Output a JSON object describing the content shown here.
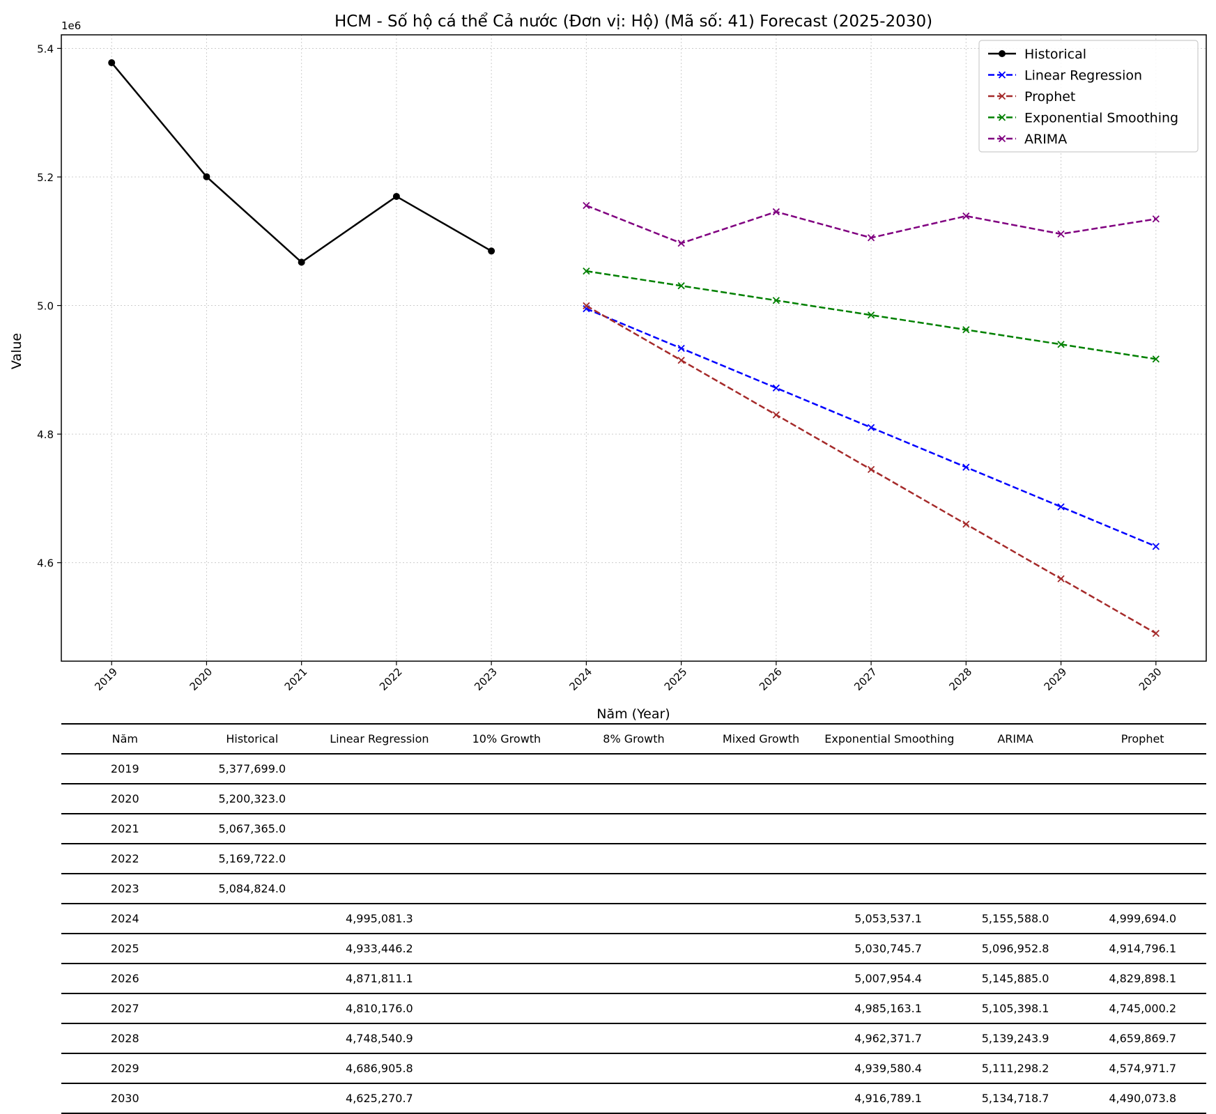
{
  "chart_data": {
    "type": "line",
    "title": "HCM - Số hộ cá thể Cả nước (Đơn vị: Hộ) (Mã số: 41) Forecast (2025-2030)",
    "xlabel": "Năm (Year)",
    "ylabel": "Value",
    "y_offset_label": "1e6",
    "x_ticks": [
      "2019",
      "2020",
      "2021",
      "2022",
      "2023",
      "2024",
      "2025",
      "2026",
      "2027",
      "2028",
      "2029",
      "2030"
    ],
    "y_ticks": [
      "4.6",
      "4.8",
      "5.0",
      "5.2",
      "5.4"
    ],
    "xlim": [
      2018.47,
      2030.53
    ],
    "ylim": [
      4446830,
      5421080
    ],
    "grid": true,
    "legend_position": "top-right",
    "series": [
      {
        "name": "Historical",
        "color": "#000000",
        "style": "solid",
        "marker": "circle",
        "x": [
          2019,
          2020,
          2021,
          2022,
          2023
        ],
        "values": [
          5377699.0,
          5200323.0,
          5067365.0,
          5169722.0,
          5084824.0
        ]
      },
      {
        "name": "Linear Regression",
        "color": "#0000ff",
        "style": "dashed",
        "marker": "x",
        "x": [
          2024,
          2025,
          2026,
          2027,
          2028,
          2029,
          2030
        ],
        "values": [
          4995081.3,
          4933446.2,
          4871811.1,
          4810176.0,
          4748540.9,
          4686905.8,
          4625270.7
        ]
      },
      {
        "name": "Prophet",
        "color": "#a52a2a",
        "style": "dashed",
        "marker": "x",
        "x": [
          2024,
          2025,
          2026,
          2027,
          2028,
          2029,
          2030
        ],
        "values": [
          4999694.0,
          4914796.1,
          4829898.1,
          4745000.2,
          4659869.7,
          4574971.7,
          4490073.8
        ]
      },
      {
        "name": "Exponential Smoothing",
        "color": "#008000",
        "style": "dashed",
        "marker": "x",
        "x": [
          2024,
          2025,
          2026,
          2027,
          2028,
          2029,
          2030
        ],
        "values": [
          5053537.1,
          5030745.7,
          5007954.4,
          4985163.1,
          4962371.7,
          4939580.4,
          4916789.1
        ]
      },
      {
        "name": "ARIMA",
        "color": "#800080",
        "style": "dashed",
        "marker": "x",
        "x": [
          2024,
          2025,
          2026,
          2027,
          2028,
          2029,
          2030
        ],
        "values": [
          5155588.0,
          5096952.8,
          5145885.0,
          5105398.1,
          5139243.9,
          5111298.2,
          5134718.7
        ]
      }
    ]
  },
  "table": {
    "headers": [
      "Năm",
      "Historical",
      "Linear Regression",
      "10% Growth",
      "8% Growth",
      "Mixed Growth",
      "Exponential Smoothing",
      "ARIMA",
      "Prophet"
    ],
    "rows": [
      [
        "2019",
        "5,377,699.0",
        "",
        "",
        "",
        "",
        "",
        "",
        ""
      ],
      [
        "2020",
        "5,200,323.0",
        "",
        "",
        "",
        "",
        "",
        "",
        ""
      ],
      [
        "2021",
        "5,067,365.0",
        "",
        "",
        "",
        "",
        "",
        "",
        ""
      ],
      [
        "2022",
        "5,169,722.0",
        "",
        "",
        "",
        "",
        "",
        "",
        ""
      ],
      [
        "2023",
        "5,084,824.0",
        "",
        "",
        "",
        "",
        "",
        "",
        ""
      ],
      [
        "2024",
        "",
        "4,995,081.3",
        "",
        "",
        "",
        "5,053,537.1",
        "5,155,588.0",
        "4,999,694.0"
      ],
      [
        "2025",
        "",
        "4,933,446.2",
        "",
        "",
        "",
        "5,030,745.7",
        "5,096,952.8",
        "4,914,796.1"
      ],
      [
        "2026",
        "",
        "4,871,811.1",
        "",
        "",
        "",
        "5,007,954.4",
        "5,145,885.0",
        "4,829,898.1"
      ],
      [
        "2027",
        "",
        "4,810,176.0",
        "",
        "",
        "",
        "4,985,163.1",
        "5,105,398.1",
        "4,745,000.2"
      ],
      [
        "2028",
        "",
        "4,748,540.9",
        "",
        "",
        "",
        "4,962,371.7",
        "5,139,243.9",
        "4,659,869.7"
      ],
      [
        "2029",
        "",
        "4,686,905.8",
        "",
        "",
        "",
        "4,939,580.4",
        "5,111,298.2",
        "4,574,971.7"
      ],
      [
        "2030",
        "",
        "4,625,270.7",
        "",
        "",
        "",
        "4,916,789.1",
        "5,134,718.7",
        "4,490,073.8"
      ]
    ]
  }
}
